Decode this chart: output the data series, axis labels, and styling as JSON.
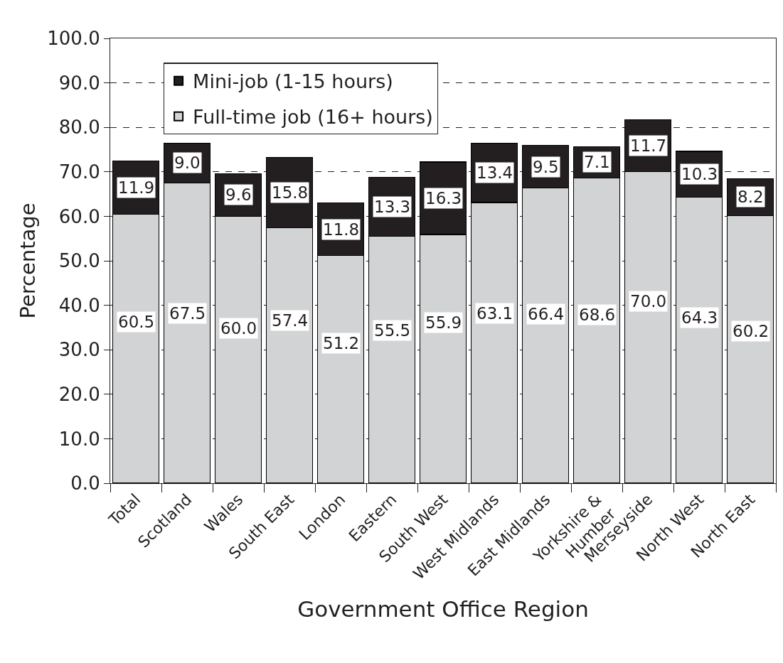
{
  "chart_data": {
    "type": "bar",
    "stacked": true,
    "xlabel": "Government Office Region",
    "ylabel": "Percentage",
    "categories": [
      "Total",
      "Scotland",
      "Wales",
      "South East",
      "London",
      "Eastern",
      "South West",
      "West Midlands",
      "East Midlands",
      "Yorkshire &\nHumber",
      "Merseyside",
      "North West",
      "North East"
    ],
    "series": [
      {
        "name": "Full-time job (16+ hours)",
        "color": "#d1d3d4",
        "values": [
          60.5,
          67.5,
          60.0,
          57.4,
          51.2,
          55.5,
          55.9,
          63.1,
          66.4,
          68.6,
          70.0,
          64.3,
          60.2
        ],
        "value_labels": [
          "60.5",
          "67.5",
          "60.0",
          "57.4",
          "51.2",
          "55.5",
          "55.9",
          "63.1",
          "66.4",
          "68.6",
          "70.0",
          "64.3",
          "60.2"
        ]
      },
      {
        "name": "Mini-job (1-15 hours)",
        "color": "#231f20",
        "values": [
          11.9,
          9.0,
          9.6,
          15.8,
          11.8,
          13.3,
          16.3,
          13.4,
          9.5,
          7.1,
          11.7,
          10.3,
          8.2
        ],
        "value_labels": [
          "11.9",
          "9.0",
          "9.6",
          "15.8",
          "11.8",
          "13.3",
          "16.3",
          "13.4",
          "9.5",
          "7.1",
          "11.7",
          "10.3",
          "8.2"
        ]
      }
    ],
    "ylim": [
      0,
      100
    ],
    "yticks": [
      {
        "value": 0,
        "label": "0.0"
      },
      {
        "value": 10,
        "label": "10.0"
      },
      {
        "value": 20,
        "label": "20.0"
      },
      {
        "value": 30,
        "label": "30.0"
      },
      {
        "value": 40,
        "label": "40.0"
      },
      {
        "value": 50,
        "label": "50.0"
      },
      {
        "value": 60,
        "label": "60.0"
      },
      {
        "value": 70,
        "label": "70.0"
      },
      {
        "value": 80,
        "label": "80.0"
      },
      {
        "value": 90,
        "label": "90.0"
      },
      {
        "value": 100,
        "label": "100.0"
      }
    ],
    "grid": "y",
    "legend": "top left"
  }
}
